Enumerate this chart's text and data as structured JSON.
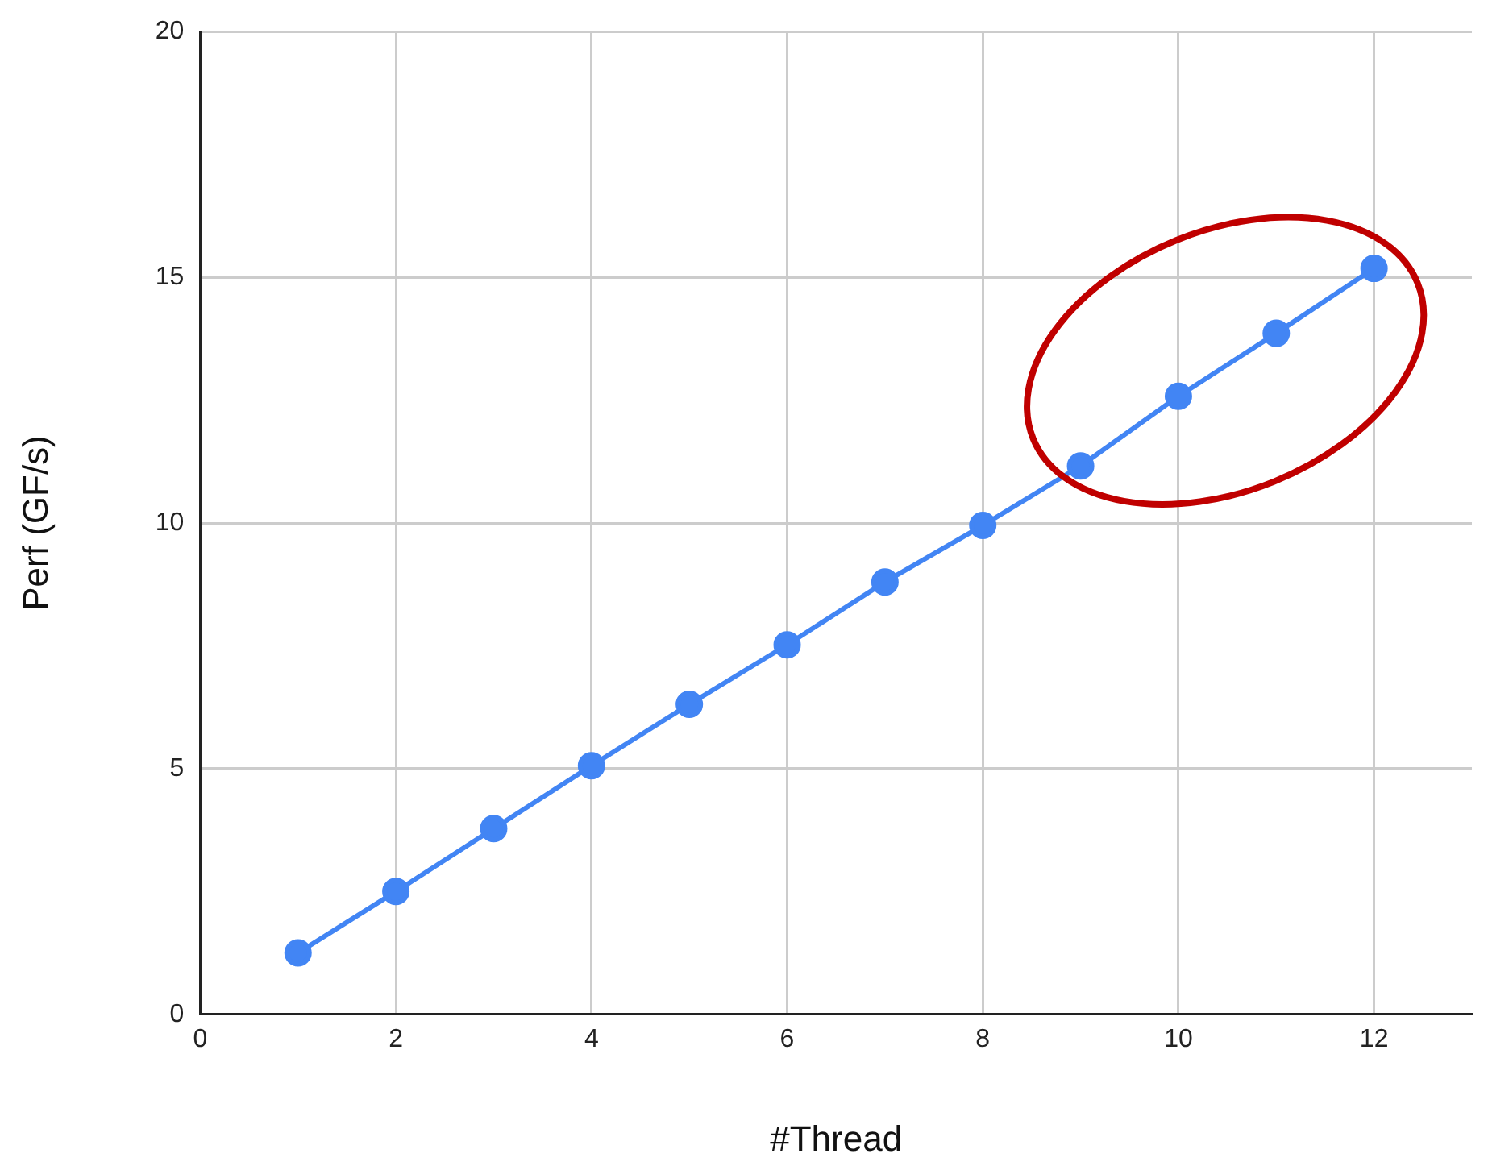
{
  "chart_data": {
    "type": "line",
    "xlabel": "#Thread",
    "ylabel": "Perf (GF/s)",
    "x": [
      1,
      2,
      3,
      4,
      5,
      6,
      7,
      8,
      9,
      10,
      11,
      12
    ],
    "series": [
      {
        "color": "#4285f4",
        "values": [
          1.25,
          2.5,
          3.78,
          5.06,
          6.31,
          7.52,
          8.8,
          9.95,
          11.16,
          12.58,
          13.86,
          15.18
        ]
      }
    ],
    "xlim": [
      0,
      13
    ],
    "xticks": [
      0,
      2,
      4,
      6,
      8,
      10,
      12
    ],
    "ylim": [
      0,
      20
    ],
    "yticks": [
      0,
      5,
      10,
      15,
      20
    ],
    "grid": true,
    "legend": false,
    "marker": "circle",
    "line_style": "solid"
  }
}
